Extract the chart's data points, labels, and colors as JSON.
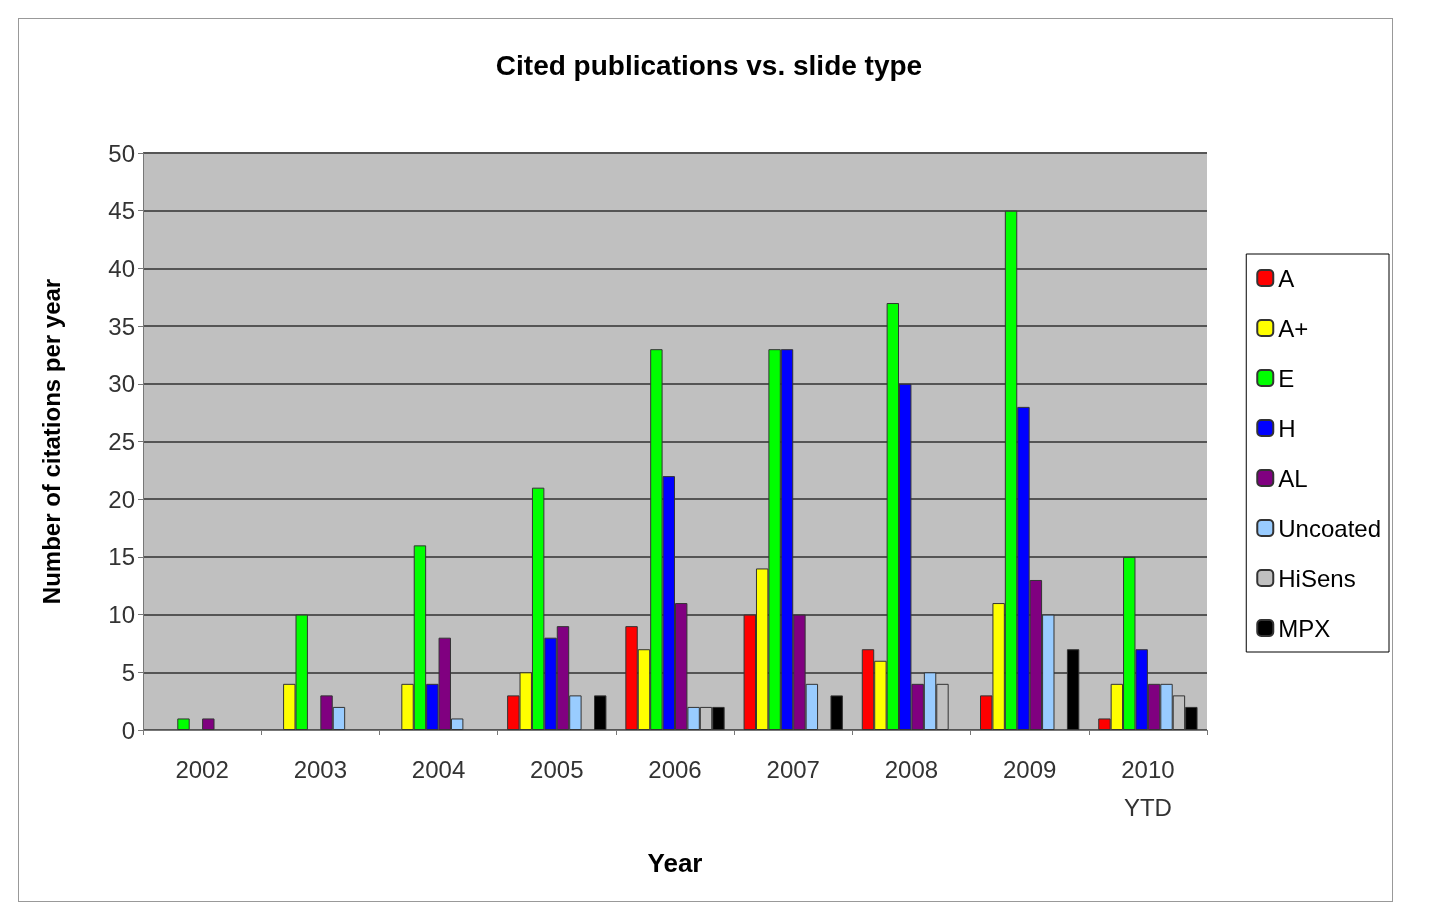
{
  "chart_data": {
    "type": "bar",
    "title": "Cited publications vs. slide type",
    "xlabel": "Year",
    "ylabel": "Number of citations per year",
    "categories": [
      "2002",
      "2003",
      "2004",
      "2005",
      "2006",
      "2007",
      "2008",
      "2009",
      "2010\nYTD"
    ],
    "series": [
      {
        "name": "A",
        "color": "#ff0000",
        "values": [
          null,
          null,
          null,
          3,
          9,
          10,
          7,
          3,
          1
        ]
      },
      {
        "name": "A+",
        "color": "#ffff00",
        "values": [
          null,
          4,
          4,
          5,
          7,
          14,
          6,
          11,
          4
        ]
      },
      {
        "name": "E",
        "color": "#00ff00",
        "values": [
          1,
          10,
          16,
          21,
          33,
          33,
          37,
          45,
          15
        ]
      },
      {
        "name": "H",
        "color": "#0000ff",
        "values": [
          null,
          null,
          4,
          8,
          22,
          33,
          30,
          28,
          7
        ]
      },
      {
        "name": "AL",
        "color": "#800080",
        "values": [
          1,
          3,
          8,
          9,
          11,
          10,
          4,
          13,
          4
        ]
      },
      {
        "name": "Uncoated",
        "color": "#99ccff",
        "values": [
          null,
          2,
          1,
          3,
          2,
          4,
          5,
          10,
          4
        ]
      },
      {
        "name": "HiSens",
        "color": "#c0c0c0",
        "values": [
          null,
          null,
          null,
          null,
          2,
          null,
          4,
          null,
          3
        ]
      },
      {
        "name": "MPX",
        "color": "#000000",
        "values": [
          null,
          null,
          null,
          3,
          2,
          3,
          null,
          7,
          2
        ]
      }
    ],
    "ylim": [
      0,
      50
    ],
    "yticks": [
      0,
      5,
      10,
      15,
      20,
      25,
      30,
      35,
      40,
      45,
      50
    ],
    "grid": "y",
    "legend": "right"
  }
}
